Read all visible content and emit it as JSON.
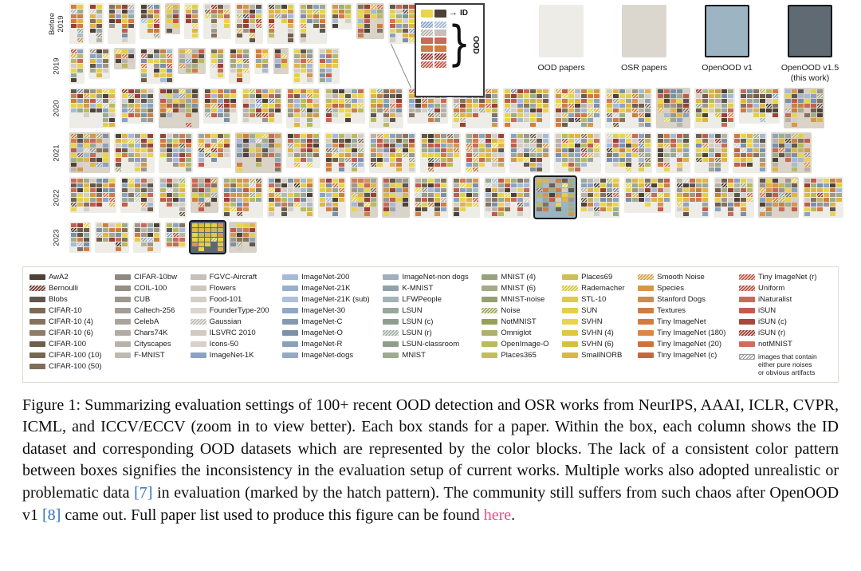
{
  "figure": {
    "seed": 12345,
    "osr_ratio": 0.22,
    "hatch_ratio": 0.12,
    "box_colors": {
      "ood": "#edece7",
      "osr": "#d9d3c8",
      "v1": "#9cb4c2",
      "v15": "#5e6871"
    },
    "tile_palette": [
      "#4e4238",
      "#85735f",
      "#6f5e4b",
      "#9d968e",
      "#b9b2aa",
      "#d5cec6",
      "#d5cec6",
      "#8ba3c2",
      "#a5bad4",
      "#7b90a9",
      "#97a89c",
      "#a0ad85",
      "#b9ba5f",
      "#ead44b",
      "#ead44b",
      "#e3cf47",
      "#e0b547",
      "#e0b547",
      "#d5974d",
      "#ca7f45",
      "#d37c41",
      "#c86a5b",
      "#c25c4d",
      "#9a4035",
      "#5f564d"
    ],
    "v15_palette": [
      "#ead44b",
      "#e3cf47",
      "#ddcb45",
      "#e0b547",
      "#d9be39",
      "#c3bd59",
      "#d5974d"
    ],
    "rows": [
      {
        "label": [
          "Before",
          "2019"
        ],
        "boxes": 13,
        "cols": [
          2,
          4
        ],
        "tiles": [
          3,
          8
        ]
      },
      {
        "label": [
          "2019"
        ],
        "boxes": 11,
        "cols": [
          2,
          5
        ],
        "tiles": [
          3,
          7
        ]
      },
      {
        "label": [
          "2020"
        ],
        "boxes": 17,
        "cols": [
          5,
          7
        ],
        "tiles": [
          5,
          8
        ]
      },
      {
        "label": [
          "2021"
        ],
        "boxes": 17,
        "cols": [
          5,
          7
        ],
        "tiles": [
          5,
          8
        ]
      },
      {
        "label": [
          "2022"
        ],
        "boxes": 19,
        "cols": [
          4,
          7
        ],
        "tiles": [
          5,
          8
        ],
        "highlight": {
          "index": 12,
          "type": "v1"
        }
      },
      {
        "label": [
          "2023"
        ],
        "boxes": 6,
        "cols": [
          3,
          5
        ],
        "tiles": [
          4,
          6
        ],
        "highlight": {
          "index": 4,
          "type": "v15"
        }
      }
    ],
    "inset": {
      "id_label": "ID",
      "ood_label": "OOD",
      "id_tiles": [
        {
          "c": "#ead44b"
        },
        {
          "c": "#4e4238"
        }
      ],
      "ood_rows": [
        [
          {
            "c": "#8fa6c4",
            "h": 1
          },
          {
            "c": "#a5bad4",
            "h": 1
          }
        ],
        [
          {
            "c": "#b9b2aa",
            "h": 1
          },
          {
            "c": "#c7c0b8"
          }
        ],
        [
          {
            "c": "#c86a5b"
          },
          {
            "c": "#c86a5b"
          }
        ],
        [
          {
            "c": "#ca7f45"
          },
          {
            "c": "#d37c41"
          }
        ],
        [
          {
            "c": "#9a4035",
            "h": 1
          },
          {
            "c": "#9a4035",
            "h": 1
          }
        ],
        [
          {
            "c": "#c15d4c",
            "h": 1
          },
          {
            "c": "#c15d4c",
            "h": 1
          }
        ]
      ]
    }
  },
  "top_legend": {
    "items": [
      {
        "label": "OOD papers",
        "color": "#edece7",
        "border": false
      },
      {
        "label": "OSR papers",
        "color": "#dcd7ce",
        "border": false
      },
      {
        "label": "OpenOOD v1",
        "color": "#9db5c3",
        "border": true
      },
      {
        "label": "OpenOOD v1.5",
        "sublabel": "(this work)",
        "color": "#5f6a73",
        "border": true
      }
    ]
  },
  "dataset_legend": {
    "columns": [
      [
        {
          "name": "AwA2",
          "color": "#4e4238"
        },
        {
          "name": "Bernoulli",
          "color": "#7d4036",
          "h": 1
        },
        {
          "name": "Blobs",
          "color": "#5f564d"
        },
        {
          "name": "CIFAR-10",
          "color": "#7c6a57"
        },
        {
          "name": "CIFAR-10 (4)",
          "color": "#85735f"
        },
        {
          "name": "CIFAR-10 (6)",
          "color": "#8e7c67"
        },
        {
          "name": "CIFAR-100",
          "color": "#6f5e4b"
        },
        {
          "name": "CIFAR-100 (10)",
          "color": "#776650"
        },
        {
          "name": "CIFAR-100 (50)",
          "color": "#806e58"
        }
      ],
      [
        {
          "name": "CIFAR-10bw",
          "color": "#8f8880"
        },
        {
          "name": "COIL-100",
          "color": "#968f87"
        },
        {
          "name": "CUB",
          "color": "#9d968e"
        },
        {
          "name": "Caltech-256",
          "color": "#a49d95"
        },
        {
          "name": "CelebA",
          "color": "#aba49c"
        },
        {
          "name": "Chars74K",
          "color": "#b2aba3"
        },
        {
          "name": "Cityscapes",
          "color": "#b9b2aa"
        },
        {
          "name": "F-MNIST",
          "color": "#c0b9b1"
        }
      ],
      [
        {
          "name": "FGVC-Aircraft",
          "color": "#c7c0b8"
        },
        {
          "name": "Flowers",
          "color": "#cec7bf"
        },
        {
          "name": "Food-101",
          "color": "#d5cec6"
        },
        {
          "name": "FounderType-200",
          "color": "#dcd5cd"
        },
        {
          "name": "Gaussian",
          "color": "#c3bcb4",
          "h": 1
        },
        {
          "name": "ILSVRC 2010",
          "color": "#d1cac2"
        },
        {
          "name": "Icons-50",
          "color": "#d8d1c9"
        },
        {
          "name": "ImageNet-1K",
          "color": "#8ba3c2"
        }
      ],
      [
        {
          "name": "ImageNet-200",
          "color": "#a5bad4"
        },
        {
          "name": "ImageNet-21K",
          "color": "#99b0cc"
        },
        {
          "name": "ImageNet-21K (sub)",
          "color": "#aec1d8"
        },
        {
          "name": "ImageNet-30",
          "color": "#8fa8c6"
        },
        {
          "name": "ImageNet-C",
          "color": "#8499b3"
        },
        {
          "name": "ImageNet-O",
          "color": "#7b90a9"
        },
        {
          "name": "ImageNet-R",
          "color": "#8a9fb8"
        },
        {
          "name": "ImageNet-dogs",
          "color": "#95aac3"
        }
      ],
      [
        {
          "name": "ImageNet-non dogs",
          "color": "#9fb0bc"
        },
        {
          "name": "K-MNIST",
          "color": "#90a1ad"
        },
        {
          "name": "LFWPeople",
          "color": "#a5b2b6"
        },
        {
          "name": "LSUN",
          "color": "#97a89c"
        },
        {
          "name": "LSUN (c)",
          "color": "#8c9d91"
        },
        {
          "name": "LSUN (r)",
          "color": "#a2b3a7",
          "h": 1
        },
        {
          "name": "LSUN-classroom",
          "color": "#8d9e8b"
        },
        {
          "name": "MNIST",
          "color": "#9dab90"
        }
      ],
      [
        {
          "name": "MNIST (4)",
          "color": "#96a37b"
        },
        {
          "name": "MNIST (6)",
          "color": "#a0ad85"
        },
        {
          "name": "MNIST-noise",
          "color": "#94a16d"
        },
        {
          "name": "Noise",
          "color": "#a5a867",
          "h": 1
        },
        {
          "name": "NotMNIST",
          "color": "#989f59"
        },
        {
          "name": "Omniglot",
          "color": "#adb165"
        },
        {
          "name": "OpenImage-O",
          "color": "#b9ba5f"
        },
        {
          "name": "Places365",
          "color": "#c3bd59"
        }
      ],
      [
        {
          "name": "Places69",
          "color": "#ccc053"
        },
        {
          "name": "Rademacher",
          "color": "#d5c64b",
          "h": 1
        },
        {
          "name": "STL-10",
          "color": "#ddcb45"
        },
        {
          "name": "SUN",
          "color": "#e3cf47"
        },
        {
          "name": "SVHN",
          "color": "#ead44b"
        },
        {
          "name": "SVHN (4)",
          "color": "#e1c73f"
        },
        {
          "name": "SVHN (6)",
          "color": "#d9be39"
        },
        {
          "name": "SmallNORB",
          "color": "#e0b547"
        }
      ],
      [
        {
          "name": "Smooth Noise",
          "color": "#d9a34b",
          "h": 1
        },
        {
          "name": "Species",
          "color": "#d5974d"
        },
        {
          "name": "Stanford Dogs",
          "color": "#d08b49"
        },
        {
          "name": "Textures",
          "color": "#ca7f45"
        },
        {
          "name": "Tiny ImageNet",
          "color": "#d37c41"
        },
        {
          "name": "Tiny ImageNet (180)",
          "color": "#da8747"
        },
        {
          "name": "Tiny ImageNet (20)",
          "color": "#cd723d"
        },
        {
          "name": "Tiny ImageNet (c)",
          "color": "#c66739"
        }
      ],
      [
        {
          "name": "Tiny ImageNet (r)",
          "color": "#c15d4c",
          "h": 1
        },
        {
          "name": "Uniform",
          "color": "#ba5746",
          "h": 1
        },
        {
          "name": "iNaturalist",
          "color": "#c86a5b"
        },
        {
          "name": "iSUN",
          "color": "#c25c4d"
        },
        {
          "name": "iSUN (c)",
          "color": "#a6483d"
        },
        {
          "name": "iSUN (r)",
          "color": "#9a4035",
          "h": 1
        },
        {
          "name": "notMNIST",
          "color": "#cf6d5c"
        }
      ]
    ],
    "note": {
      "lines": [
        "images that contain",
        "either pure noises",
        "or obvious artifacts"
      ]
    }
  },
  "caption": {
    "cite_color": "#3070c8",
    "link_color": "#ed4d85",
    "segments": [
      {
        "type": "plain",
        "text": "Figure 1: Summarizing evaluation settings of 100+ recent OOD detection and OSR works from NeurIPS, AAAI, ICLR, CVPR, ICML, and ICCV/ECCV (zoom in to view better). Each box stands for a paper. Within the box, each column shows the ID dataset and corresponding OOD datasets which are represented by the color blocks. The lack of a consistent color pattern between boxes signifies the inconsistency in the evaluation setup of current works. Multiple works also adopted unrealistic or problematic data "
      },
      {
        "type": "cite",
        "text": "[7]"
      },
      {
        "type": "plain",
        "text": " in evaluation (marked by the hatch pattern). The community still suffers from such chaos after OpenOOD v1 "
      },
      {
        "type": "cite",
        "text": "[8]"
      },
      {
        "type": "plain",
        "text": " came out. Full paper list used to produce this figure can be found "
      },
      {
        "type": "link",
        "text": "here"
      },
      {
        "type": "plain",
        "text": "."
      }
    ]
  }
}
